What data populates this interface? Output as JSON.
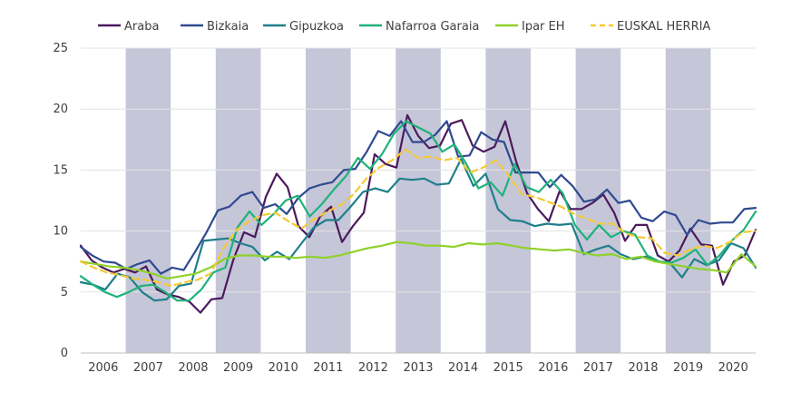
{
  "chart_data": {
    "type": "line",
    "title": "",
    "xlabel": "",
    "ylabel": "",
    "ylim": [
      0,
      25
    ],
    "yticks": [
      0,
      5,
      10,
      15,
      20,
      25
    ],
    "x_range": [
      2005.5,
      2020.5
    ],
    "year_labels": [
      "2006",
      "2007",
      "2008",
      "2009",
      "2010",
      "2011",
      "2012",
      "2013",
      "2014",
      "2015",
      "2016",
      "2017",
      "2018",
      "2019",
      "2020"
    ],
    "shaded_years": [
      2007,
      2009,
      2011,
      2013,
      2015,
      2017,
      2019
    ],
    "shade_color": "#c5c6d8",
    "grid": "horizontal",
    "legend_position": "top",
    "series": [
      {
        "name": "Araba",
        "color": "#4b1a5c",
        "dashed": false,
        "values": [
          8.8,
          7.6,
          7.0,
          6.6,
          6.9,
          6.6,
          7.1,
          5.2,
          4.8,
          4.6,
          4.2,
          3.3,
          4.4,
          4.5,
          7.6,
          9.9,
          9.5,
          12.8,
          14.7,
          13.6,
          10.4,
          9.5,
          11.2,
          12.0,
          9.1,
          10.4,
          11.5,
          16.3,
          15.5,
          15.2,
          19.5,
          17.8,
          16.8,
          17.0,
          18.8,
          19.1,
          17.0,
          16.5,
          16.9,
          19.0,
          15.7,
          13.1,
          11.8,
          10.8,
          13.3,
          11.8,
          11.8,
          12.3,
          13.0,
          11.5,
          9.2,
          10.5,
          10.5,
          8.0,
          7.5,
          8.4,
          10.2,
          8.9,
          8.8,
          5.6,
          7.5,
          8.0,
          10.1
        ]
      },
      {
        "name": "Bizkaia",
        "color": "#2f4a8f",
        "dashed": false,
        "values": [
          8.7,
          8.0,
          7.5,
          7.4,
          6.9,
          7.3,
          7.6,
          6.5,
          7.0,
          6.8,
          8.3,
          9.9,
          11.7,
          12.0,
          12.9,
          13.2,
          11.9,
          12.2,
          11.4,
          12.7,
          13.5,
          13.8,
          14.0,
          15.0,
          15.1,
          16.5,
          18.2,
          17.8,
          19.0,
          17.3,
          17.3,
          17.9,
          19.0,
          16.1,
          16.2,
          18.1,
          17.5,
          17.3,
          14.8,
          14.8,
          14.8,
          13.6,
          14.6,
          13.7,
          12.4,
          12.6,
          13.4,
          12.3,
          12.5,
          11.1,
          10.8,
          11.6,
          11.3,
          9.7,
          10.9,
          10.6,
          10.7,
          10.7,
          11.8,
          11.9
        ]
      },
      {
        "name": "Gipuzkoa",
        "color": "#1e7f8a",
        "dashed": false,
        "values": [
          5.8,
          5.6,
          5.2,
          6.5,
          6.2,
          5.0,
          4.3,
          4.4,
          5.5,
          5.7,
          9.2,
          9.3,
          9.4,
          9.0,
          8.7,
          7.6,
          8.3,
          7.7,
          9.0,
          10.3,
          10.9,
          10.9,
          12.0,
          13.2,
          13.5,
          13.2,
          14.3,
          14.2,
          14.3,
          13.8,
          13.9,
          15.9,
          13.7,
          14.7,
          11.8,
          10.9,
          10.8,
          10.4,
          10.6,
          10.5,
          10.6,
          8.1,
          8.5,
          8.8,
          8.1,
          7.7,
          7.9,
          7.5,
          7.4,
          6.2,
          7.7,
          7.2,
          7.6,
          9.0,
          8.6,
          7.0
        ]
      },
      {
        "name": "Nafarroa Garaia",
        "color": "#1fb27a",
        "dashed": false,
        "values": [
          6.3,
          5.6,
          5.0,
          4.6,
          5.0,
          5.5,
          5.6,
          5.0,
          4.3,
          4.3,
          5.2,
          6.6,
          7.0,
          10.3,
          11.6,
          10.5,
          11.4,
          12.5,
          12.9,
          11.2,
          12.2,
          13.4,
          14.5,
          16.0,
          15.1,
          16.3,
          18.0,
          19.0,
          18.5,
          18.0,
          16.5,
          17.1,
          15.5,
          13.5,
          14.0,
          12.9,
          15.5,
          13.6,
          13.2,
          14.2,
          13.1,
          10.5,
          9.3,
          10.5,
          9.5,
          10.0,
          9.7,
          8.0,
          7.5,
          7.4,
          7.8,
          8.5,
          7.2,
          8.0,
          9.2,
          10.1,
          11.6
        ]
      },
      {
        "name": "Ipar EH",
        "color": "#8fd12a",
        "dashed": false,
        "values": [
          7.5,
          7.3,
          7.1,
          7.0,
          6.8,
          6.5,
          6.1,
          6.3,
          6.5,
          7.0,
          7.7,
          8.0,
          8.0,
          7.9,
          7.9,
          7.8,
          7.9,
          7.8,
          8.0,
          8.3,
          8.6,
          8.8,
          9.1,
          9.0,
          8.8,
          8.8,
          8.7,
          9.0,
          8.9,
          9.0,
          8.8,
          8.6,
          8.5,
          8.4,
          8.5,
          8.2,
          8.0,
          8.1,
          7.7,
          7.9,
          7.5,
          7.3,
          7.1,
          6.9,
          6.8,
          6.6,
          8.1,
          7.1
        ]
      },
      {
        "name": "EUSKAL HERRIA",
        "color": "#f5c932",
        "dashed": true,
        "values": [
          7.5,
          7.0,
          6.6,
          6.4,
          6.1,
          6.0,
          5.8,
          5.5,
          5.8,
          6.0,
          6.5,
          8.6,
          10.1,
          10.8,
          11.3,
          11.5,
          10.8,
          10.2,
          11.0,
          11.6,
          12.1,
          13.0,
          14.3,
          15.2,
          15.8,
          16.7,
          16.0,
          16.1,
          15.8,
          16.0,
          14.8,
          15.2,
          15.8,
          14.5,
          13.0,
          12.8,
          12.4,
          12.0,
          11.4,
          11.0,
          10.6,
          10.6,
          9.8,
          9.5,
          9.4,
          8.2,
          8.0,
          8.5,
          8.8,
          8.6,
          9.1,
          9.9,
          10.0
        ]
      }
    ]
  }
}
